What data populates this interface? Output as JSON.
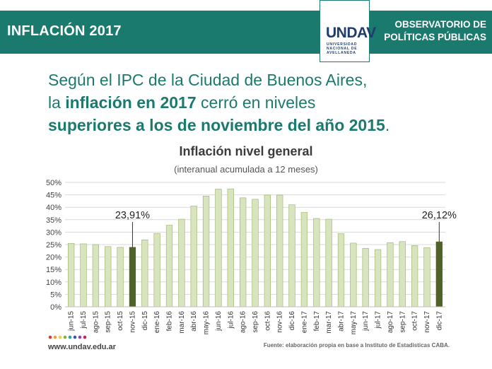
{
  "header": {
    "title": "INFLACIÓN 2017",
    "logo_mark": "UNDAV",
    "logo_lines": [
      "UNIVERSIDAD",
      "NACIONAL DE",
      "AVELLANEDA"
    ],
    "observatorio_line1": "OBSERVATORIO DE",
    "observatorio_line2": "POLÍTICAS PÚBLICAS"
  },
  "intro": {
    "line1": "Según el IPC de la Ciudad de Buenos Aires,",
    "line2_pre": "la ",
    "line2_bold": "inflación en 2017",
    "line2_post": " cerró en niveles",
    "line3_bold": "superiores a los de noviembre del año 2015",
    "line3_end": "."
  },
  "footer": {
    "url": "www.undav.edu.ar",
    "source": "Fuente: elaboración propia en base a Instituto de Estadísticas CABA.",
    "dot_colors": [
      "#e23b2e",
      "#f2a13a",
      "#f4d03f",
      "#7cb342",
      "#26a69a",
      "#3f51b5",
      "#8e44ad",
      "#d81b60"
    ]
  },
  "chart_data": {
    "type": "bar",
    "title": "Inflación nivel general",
    "subtitle": "(interanual acumulada a 12 meses)",
    "categories": [
      "jun-15",
      "jul-15",
      "ago-15",
      "sep-15",
      "oct-15",
      "nov-15",
      "dic-15",
      "ene-16",
      "feb-16",
      "mar-16",
      "abr-16",
      "may-16",
      "jun-16",
      "jul-16",
      "ago-16",
      "sep-16",
      "oct-16",
      "nov-16",
      "dic-16",
      "ene-17",
      "feb-17",
      "mar-17",
      "abr-17",
      "may-17",
      "jun-17",
      "jul-17",
      "ago-17",
      "sep-17",
      "oct-17",
      "nov-17",
      "dic-17"
    ],
    "values": [
      25.5,
      25.3,
      25.0,
      24.2,
      23.9,
      23.91,
      26.9,
      29.5,
      32.8,
      35.2,
      40.5,
      44.5,
      47.3,
      47.4,
      43.8,
      43.2,
      44.9,
      44.9,
      41.0,
      37.9,
      35.5,
      35.2,
      29.4,
      25.6,
      23.5,
      23.0,
      25.8,
      26.2,
      24.6,
      23.8,
      26.12
    ],
    "highlight": [
      {
        "category": "nov-15",
        "label": "23,91%"
      },
      {
        "category": "dic-17",
        "label": "26,12%"
      }
    ],
    "colors": {
      "bar": "#d7e4bd",
      "bar_border": "#9bb068",
      "highlight": "#4f6228",
      "grid": "#d9d9d9"
    },
    "ylim": [
      0,
      50
    ],
    "yticks": [
      0,
      5,
      10,
      15,
      20,
      25,
      30,
      35,
      40,
      45,
      50
    ],
    "ytick_labels": [
      "0%",
      "5%",
      "10%",
      "15%",
      "20%",
      "25%",
      "30%",
      "35%",
      "40%",
      "45%",
      "50%"
    ],
    "grid": true
  }
}
